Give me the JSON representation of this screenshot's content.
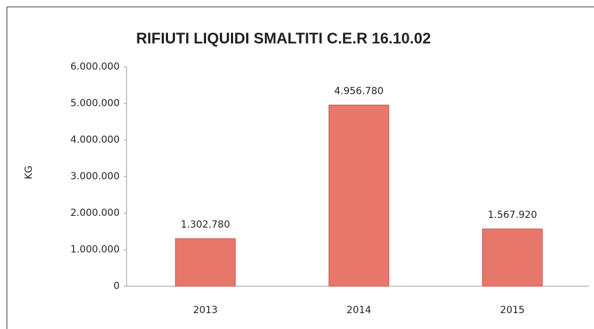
{
  "chart_data": {
    "type": "bar",
    "title": "RIFIUTI LIQUIDI SMALTITI  C.E.R  16.10.02",
    "ylabel": "KG",
    "categories": [
      "2013",
      "2014",
      "2015"
    ],
    "values": [
      1302780,
      4956780,
      1567920
    ],
    "value_labels": [
      "1.302.780",
      "4.956.780",
      "1.567.920"
    ],
    "color": "#e8776b",
    "ylim": [
      0,
      6000000
    ],
    "yticks": [
      0,
      {
        "value": 1000000,
        "label": "1.000.000"
      },
      {
        "value": 2000000,
        "label": "2.000.000"
      },
      {
        "value": 3000000,
        "label": "3.000.000"
      },
      {
        "value": 4000000,
        "label": "4.000.000"
      },
      {
        "value": 5000000,
        "label": "5.000.000"
      },
      {
        "value": 6000000,
        "label": "6.000.000"
      }
    ],
    "grid": false
  }
}
